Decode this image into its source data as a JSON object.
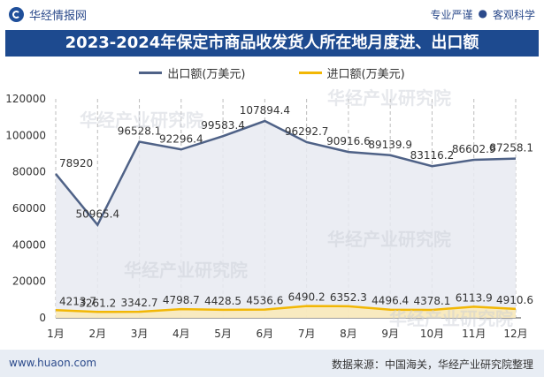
{
  "header": {
    "brand_name": "华经情报网",
    "tag_1": "专业严谨",
    "tag_sep": "●",
    "tag_2": "客观科学"
  },
  "title": "2023-2024年保定市商品收发货人所在地月度进、出口额",
  "watermark": "华经产业研究院",
  "footer": {
    "website": "www.huaon.com",
    "source": "数据来源：中国海关，华经产业研究院整理"
  },
  "colors": {
    "export_line": "#4f6287",
    "import_line": "#f2b705",
    "title_bg": "#1d4a8f"
  },
  "chart_data": {
    "type": "line",
    "categories": [
      "1月",
      "2月",
      "3月",
      "4月",
      "5月",
      "6月",
      "7月",
      "8月",
      "9月",
      "10月",
      "11月",
      "12月"
    ],
    "series": [
      {
        "name": "出口额(万美元)",
        "values": [
          78920,
          50965.4,
          96528.1,
          92296.4,
          99583.4,
          107894.4,
          96292.7,
          90916.6,
          89139.9,
          83116.2,
          86602.9,
          87258.1
        ],
        "labels": [
          "78920",
          "50965.4",
          "96528.1",
          "92296.4",
          "99583.4",
          "107894.4",
          "96292.7",
          "90916.6",
          "89139.9",
          "83116.2",
          "86602.9",
          "87258.1"
        ]
      },
      {
        "name": "进口额(万美元)",
        "values": [
          4213.7,
          3261.2,
          3342.7,
          4798.7,
          4428.5,
          4536.6,
          6490.2,
          6352.3,
          4496.4,
          4378.1,
          6113.9,
          4910.6
        ],
        "labels": [
          "4213.7",
          "3261.2",
          "3342.7",
          "4798.7",
          "4428.5",
          "4536.6",
          "6490.2",
          "6352.3",
          "4496.4",
          "4378.1",
          "6113.9",
          "4910.6"
        ]
      }
    ],
    "y_ticks": [
      "0",
      "20000",
      "40000",
      "60000",
      "80000",
      "100000",
      "120000"
    ],
    "ylim": [
      0,
      120000
    ],
    "legend_position": "top-center",
    "grid": "vertical-dashed"
  }
}
